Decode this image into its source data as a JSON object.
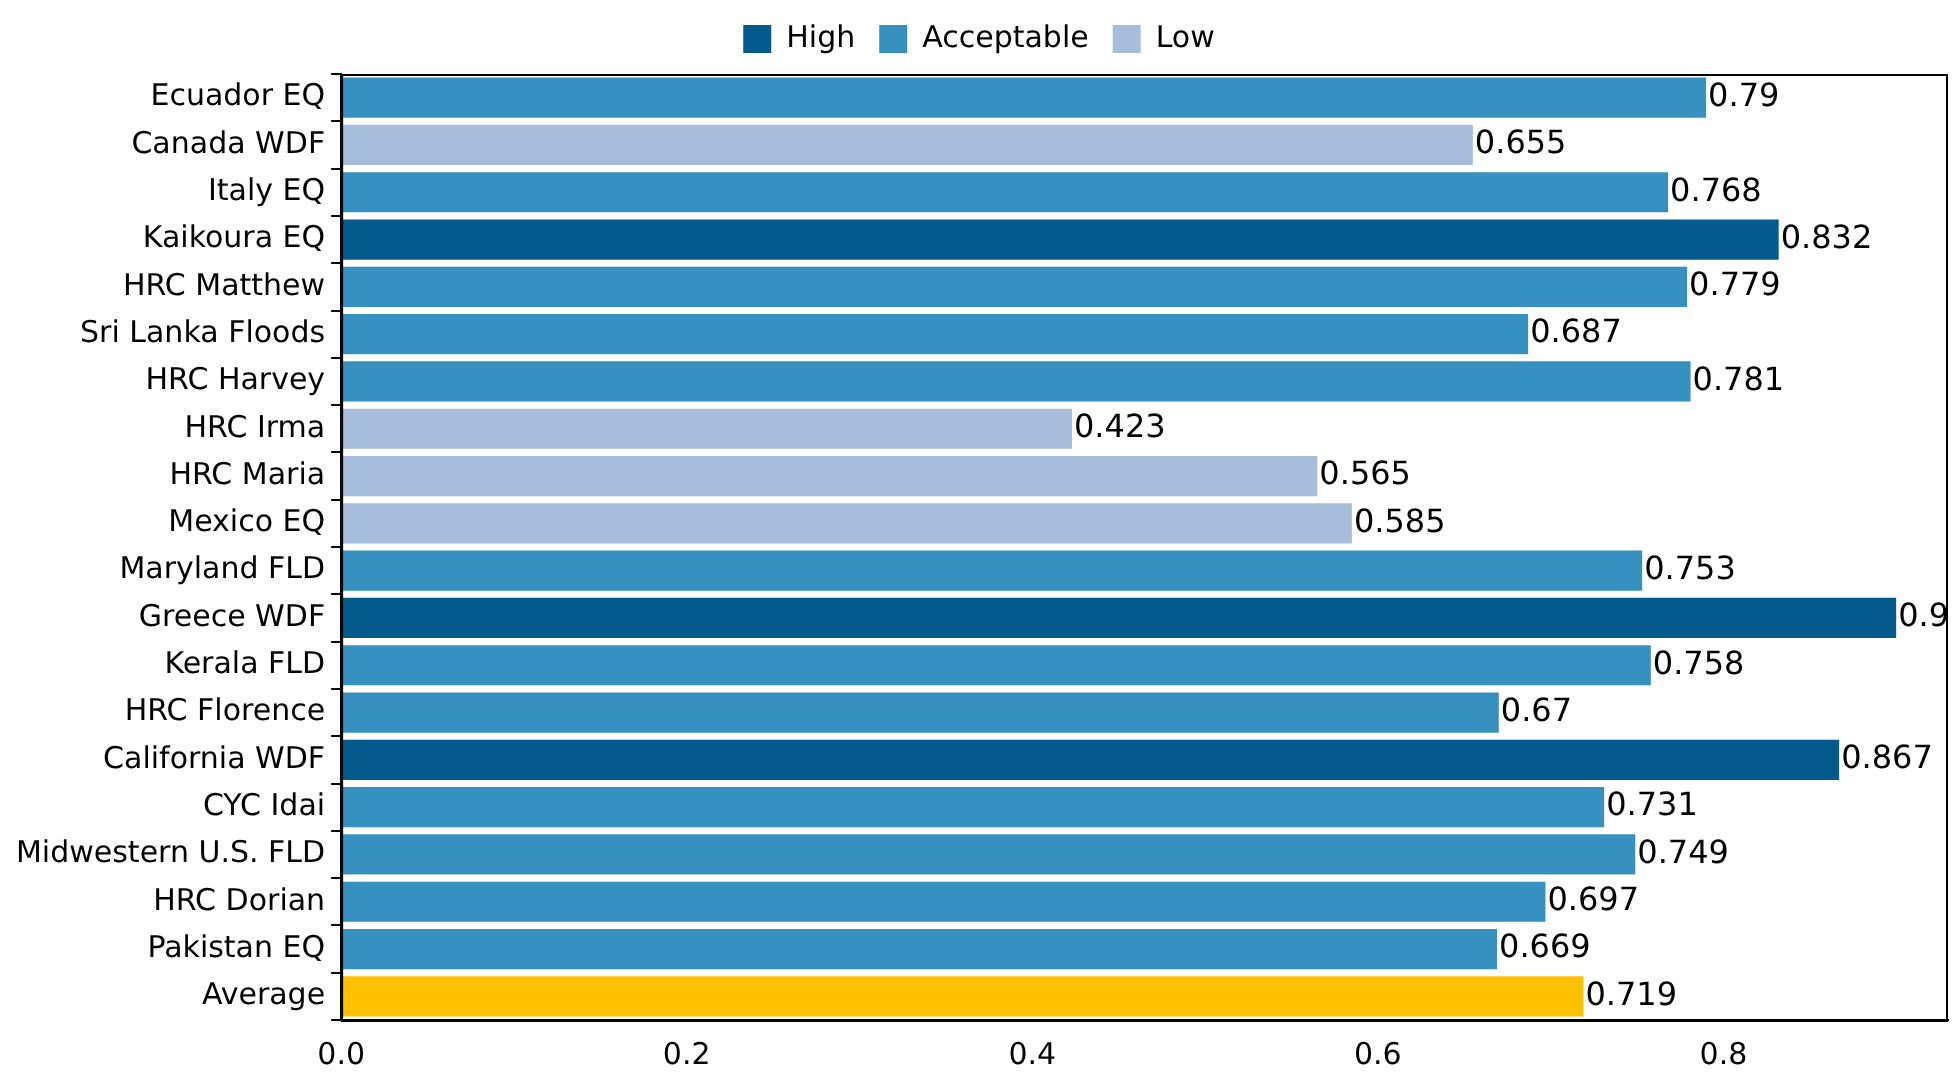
{
  "chart_data": {
    "type": "bar",
    "orientation": "horizontal",
    "categories": [
      "Ecuador EQ",
      "Canada WDF",
      "Italy EQ",
      "Kaikoura EQ",
      "HRC Matthew",
      "Sri Lanka Floods",
      "HRC Harvey",
      "HRC Irma",
      "HRC Maria",
      "Mexico EQ",
      "Maryland FLD",
      "Greece WDF",
      "Kerala FLD",
      "HRC Florence",
      "California WDF",
      "CYC Idai",
      "Midwestern U.S. FLD",
      "HRC Dorian",
      "Pakistan EQ",
      "Average"
    ],
    "series": [
      {
        "name": "High",
        "color": "#045a8d",
        "values": [
          null,
          null,
          null,
          0.832,
          null,
          null,
          null,
          null,
          null,
          null,
          null,
          0.9,
          null,
          null,
          0.867,
          null,
          null,
          null,
          null,
          null
        ]
      },
      {
        "name": "Acceptable",
        "color": "#3690c0",
        "values": [
          0.79,
          null,
          0.768,
          null,
          0.779,
          0.687,
          0.781,
          null,
          null,
          null,
          0.753,
          null,
          0.758,
          0.67,
          null,
          0.731,
          0.749,
          0.697,
          0.669,
          null
        ]
      },
      {
        "name": "Low",
        "color": "#a6bddb",
        "values": [
          null,
          0.655,
          null,
          null,
          null,
          null,
          null,
          0.423,
          0.565,
          0.585,
          null,
          null,
          null,
          null,
          null,
          null,
          null,
          null,
          null,
          null
        ]
      },
      {
        "color": "#ffc000",
        "values": [
          null,
          null,
          null,
          null,
          null,
          null,
          null,
          null,
          null,
          null,
          null,
          null,
          null,
          null,
          null,
          null,
          null,
          null,
          null,
          0.719
        ]
      }
    ],
    "xlim": [
      0,
      0.93
    ],
    "xticks": [
      {
        "value": 0,
        "label": "0.0"
      },
      {
        "value": 0.2,
        "label": "0.2"
      },
      {
        "value": 0.4,
        "label": "0.4"
      },
      {
        "value": 0.6,
        "label": "0.6"
      },
      {
        "value": 0.8,
        "label": "0.8"
      }
    ],
    "data_labels": true,
    "legend": "top",
    "grid": false
  }
}
